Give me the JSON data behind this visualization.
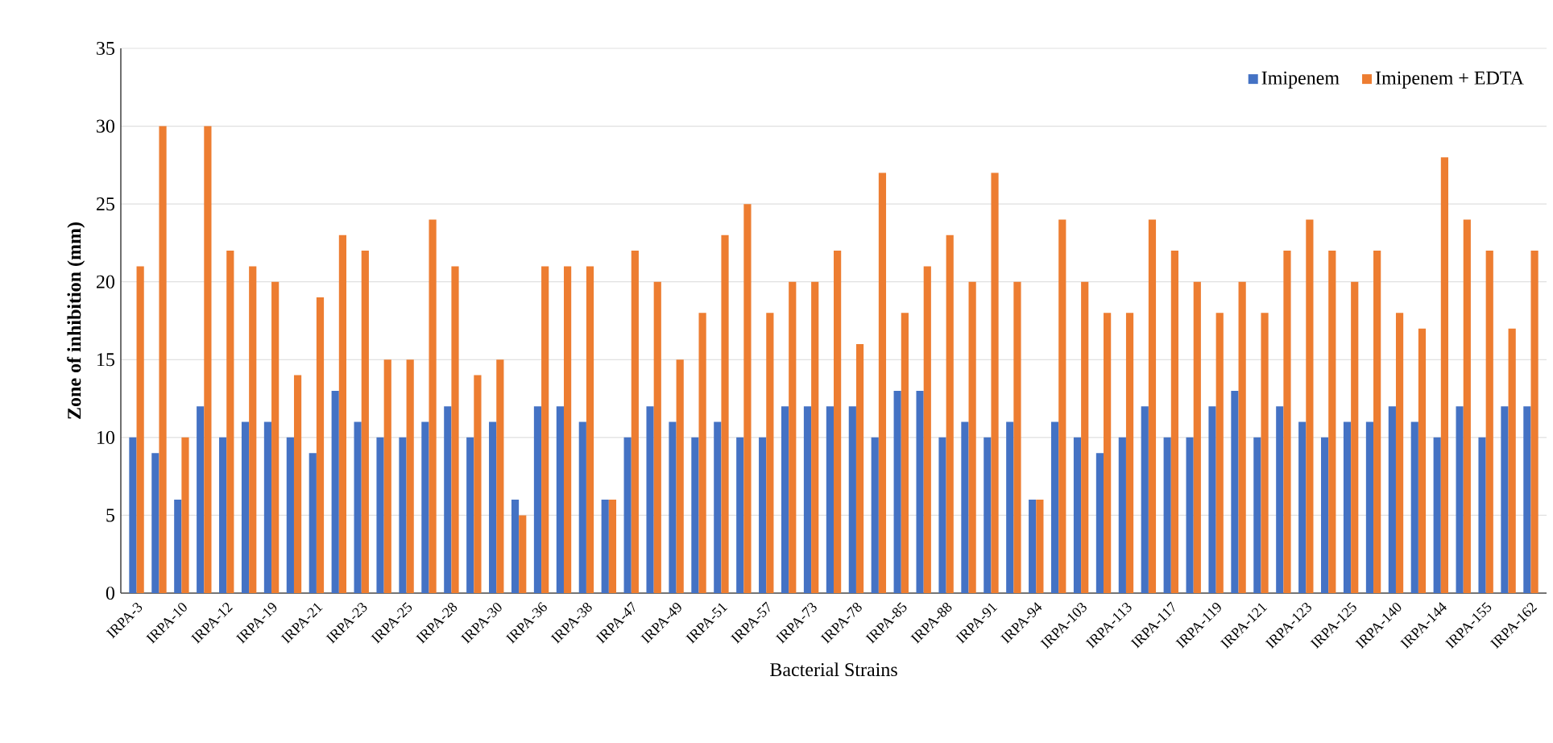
{
  "chart_data": {
    "type": "bar",
    "xlabel": "Bacterial Strains",
    "ylabel": "Zone of inhibition (mm)",
    "categories": [
      "IRPA-3",
      null,
      "IRPA-10",
      null,
      "IRPA-12",
      null,
      "IRPA-19",
      null,
      "IRPA-21",
      null,
      "IRPA-23",
      null,
      "IRPA-25",
      null,
      "IRPA-28",
      null,
      "IRPA-30",
      null,
      "IRPA-36",
      null,
      "IRPA-38",
      null,
      "IRPA-47",
      null,
      "IRPA-49",
      null,
      "IRPA-51",
      null,
      "IRPA-57",
      null,
      "IRPA-73",
      null,
      "IRPA-78",
      null,
      "IRPA-85",
      null,
      "IRPA-88",
      null,
      "IRPA-91",
      null,
      "IRPA-94",
      null,
      "IRPA-103",
      null,
      "IRPA-113",
      null,
      "IRPA-117",
      null,
      "IRPA-119",
      null,
      "IRPA-121",
      null,
      "IRPA-123",
      null,
      "IRPA-125",
      null,
      "IRPA-140",
      null,
      "IRPA-144",
      null,
      "IRPA-155",
      null,
      "IRPA-162"
    ],
    "series": [
      {
        "name": "Imipenem",
        "color": "#4472c4",
        "values": [
          10,
          9,
          6,
          12,
          10,
          11,
          11,
          10,
          9,
          13,
          11,
          10,
          10,
          11,
          12,
          10,
          11,
          6,
          12,
          12,
          11,
          6,
          10,
          12,
          11,
          10,
          11,
          10,
          10,
          12,
          12,
          12,
          12,
          10,
          13,
          13,
          10,
          11,
          10,
          11,
          6,
          11,
          10,
          9,
          10,
          12,
          10,
          10,
          12,
          13,
          10,
          12,
          11,
          10,
          11,
          11,
          12,
          11,
          10,
          12,
          10,
          12,
          12
        ]
      },
      {
        "name": "Imipenem + EDTA",
        "color": "#ed7d31",
        "values": [
          21,
          30,
          10,
          30,
          22,
          21,
          20,
          14,
          19,
          23,
          22,
          15,
          15,
          24,
          21,
          14,
          15,
          5,
          21,
          21,
          21,
          6,
          22,
          20,
          15,
          18,
          23,
          25,
          18,
          20,
          20,
          22,
          16,
          27,
          18,
          21,
          23,
          20,
          27,
          20,
          6,
          24,
          20,
          18,
          18,
          24,
          22,
          20,
          18,
          20,
          18,
          22,
          24,
          22,
          20,
          22,
          18,
          17,
          28,
          24,
          22,
          17,
          22
        ]
      }
    ],
    "ylim": [
      0,
      35
    ],
    "yticks": [
      0,
      5,
      10,
      15,
      20,
      25,
      30,
      35
    ],
    "grid": "y",
    "legend": "top right"
  }
}
